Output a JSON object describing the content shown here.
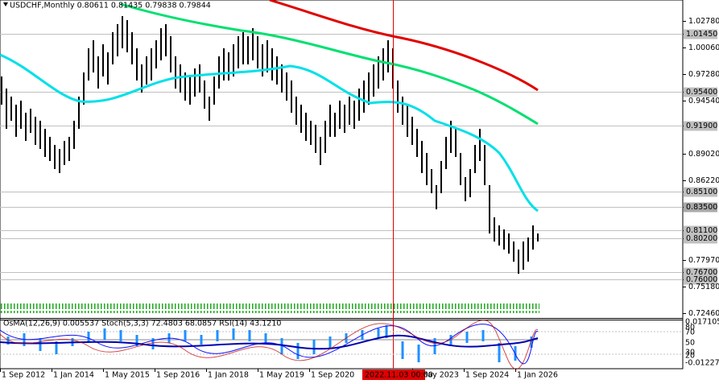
{
  "header": "USDCHF,Monthly  0.80611 0.81435 0.79838 0.79844",
  "indicator_header": "OsMA(12,26,9) 0.005537  Stoch(5,3,3) 72.4803 68.0857  RSI(14) 43.1210",
  "price_axis": [
    {
      "value": 1.0278,
      "label": "1.02780"
    },
    {
      "value": 1.0145,
      "label": "1.01450",
      "level": true
    },
    {
      "value": 1.0006,
      "label": "1.00060"
    },
    {
      "value": 0.9728,
      "label": "0.97280"
    },
    {
      "value": 0.954,
      "label": "0.95400",
      "level": true
    },
    {
      "value": 0.9454,
      "label": "0.94540"
    },
    {
      "value": 0.919,
      "label": "0.91900",
      "level": true
    },
    {
      "value": 0.8902,
      "label": "0.89020"
    },
    {
      "value": 0.8622,
      "label": "0.86220"
    },
    {
      "value": 0.851,
      "label": "0.85100",
      "level": true
    },
    {
      "value": 0.835,
      "label": "0.83500",
      "level": true
    },
    {
      "value": 0.811,
      "label": "0.81100",
      "level": true
    },
    {
      "value": 0.802,
      "label": "0.80200",
      "level": true
    },
    {
      "value": 0.7797,
      "label": "0.77970"
    },
    {
      "value": 0.767,
      "label": "0.76700",
      "level": true
    },
    {
      "value": 0.76,
      "label": "0.76000",
      "level": true
    },
    {
      "value": 0.7518,
      "label": "0.75180"
    },
    {
      "value": 0.7246,
      "label": "0.72460"
    }
  ],
  "indicator_axis": [
    "0.0171053",
    "80",
    "70",
    "50",
    "30",
    "20",
    "-0.0122775"
  ],
  "time_axis": [
    "1 Sep 2012",
    "1 Jan 2014",
    "1 May 2015",
    "1 Sep 2016",
    "1 Jan 2018",
    "1 May 2019",
    "1 Sep 2020",
    "1 May 2023",
    "1 Sep 2024",
    "1 Jan 2026"
  ],
  "cursor_time": "2022.11.03 00:00"
}
